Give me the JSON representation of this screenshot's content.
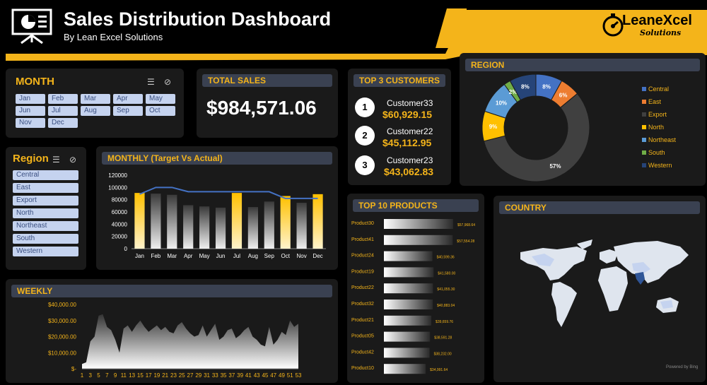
{
  "header": {
    "title": "Sales Distribution Dashboard",
    "subtitle": "By Lean Excel Solutions",
    "logo_main": "LeaneXcel",
    "logo_sub": "Solutions"
  },
  "colors": {
    "accent": "#f4b41a",
    "panel": "#1a1a1a",
    "title_bar": "#3a4151",
    "chip": "#c5d3ef"
  },
  "month_slicer": {
    "title": "MONTH",
    "items": [
      "Jan",
      "Feb",
      "Mar",
      "Apr",
      "May",
      "Jun",
      "Jul",
      "Aug",
      "Sep",
      "Oct",
      "Nov",
      "Dec"
    ]
  },
  "region_slicer": {
    "title": "Region",
    "items": [
      "Central",
      "East",
      "Export",
      "North",
      "Northeast",
      "South",
      "Western"
    ]
  },
  "total_sales": {
    "title": "TOTAL SALES",
    "value": "$984,571.06"
  },
  "top_customers": {
    "title": "TOP 3 CUSTOMERS",
    "items": [
      {
        "rank": "1",
        "name": "Customer33",
        "value": "$60,929.15"
      },
      {
        "rank": "2",
        "name": "Customer22",
        "value": "$45,112.95"
      },
      {
        "rank": "3",
        "name": "Customer23",
        "value": "$43,062.83"
      }
    ]
  },
  "region_panel": {
    "title": "REGION"
  },
  "monthly_panel": {
    "title": "MONTHLY (Target Vs Actual)"
  },
  "top_products_panel": {
    "title": "TOP 10 PRODUCTS"
  },
  "country_panel": {
    "title": "COUNTRY",
    "footer": "Powered by Bing"
  },
  "weekly_panel": {
    "title": "WEEKLY"
  },
  "chart_data": [
    {
      "type": "pie",
      "categories": [
        "Central",
        "East",
        "Export",
        "North",
        "Northeast",
        "South",
        "Western"
      ],
      "values": [
        8,
        6,
        57,
        9,
        10,
        2,
        8
      ],
      "labels": [
        "8%",
        "6%",
        "57%",
        "9%",
        "10%",
        "2%",
        "8%"
      ],
      "colors": [
        "#4472c4",
        "#ed7d31",
        "#404040",
        "#ffc000",
        "#5b9bd5",
        "#70ad47",
        "#264478"
      ],
      "legend": "right"
    },
    {
      "type": "bar",
      "categories": [
        "Jan",
        "Feb",
        "Mar",
        "Apr",
        "May",
        "Jun",
        "Jul",
        "Aug",
        "Sep",
        "Oct",
        "Nov",
        "Dec"
      ],
      "series": [
        {
          "name": "Actual",
          "values": [
            91000,
            90000,
            88000,
            71000,
            69000,
            67000,
            91000,
            68000,
            77000,
            86000,
            75000,
            89000
          ]
        },
        {
          "name": "Target",
          "values": [
            89000,
            100000,
            100000,
            93000,
            93000,
            93000,
            93000,
            93000,
            93000,
            82000,
            82000,
            82000
          ]
        }
      ],
      "highlighted": [
        "Jan",
        "Jul",
        "Oct",
        "Dec"
      ],
      "y_ticks": [
        "0",
        "20000",
        "40000",
        "60000",
        "80000",
        "100000",
        "120000"
      ],
      "ylim": [
        0,
        120000
      ]
    },
    {
      "type": "bar",
      "orientation": "horizontal",
      "categories": [
        "Product30",
        "Product41",
        "Product24",
        "Product19",
        "Product22",
        "Product32",
        "Product21",
        "Product05",
        "Product42",
        "Product10"
      ],
      "values": [
        57968.64,
        57554.28,
        40599.36,
        41580.0,
        41055.3,
        40883.04,
        39659.76,
        38591.28,
        38232.0,
        34991.64
      ],
      "labels": [
        "$57,968.64",
        "$57,554.28",
        "$40,599.36",
        "$41,580.00",
        "$41,055.30",
        "$40,883.04",
        "$39,659.76",
        "$38,591.28",
        "$38,232.00",
        "$34,991.64"
      ]
    },
    {
      "type": "area",
      "x_ticks": [
        "1",
        "3",
        "5",
        "7",
        "9",
        "11",
        "13",
        "15",
        "17",
        "19",
        "21",
        "23",
        "25",
        "27",
        "29",
        "31",
        "33",
        "35",
        "37",
        "39",
        "41",
        "43",
        "45",
        "47",
        "49",
        "51",
        "53"
      ],
      "y_ticks": [
        "$-",
        "$10,000.00",
        "$20,000.00",
        "$30,000.00",
        "$40,000.00"
      ],
      "ylim": [
        0,
        40000
      ],
      "values": [
        3000,
        4000,
        17000,
        20000,
        33000,
        34000,
        26000,
        24000,
        18000,
        10000,
        25000,
        27000,
        23000,
        27000,
        30000,
        26000,
        23000,
        25000,
        27000,
        24000,
        26000,
        23000,
        22000,
        27000,
        29000,
        25000,
        22000,
        20000,
        21000,
        27000,
        20000,
        24000,
        28000,
        18000,
        20000,
        24000,
        25000,
        19000,
        21000,
        24000,
        26000,
        20000,
        18000,
        15000,
        14000,
        26000,
        15000,
        18000,
        23000,
        21000,
        30000,
        26000,
        28000
      ]
    }
  ]
}
